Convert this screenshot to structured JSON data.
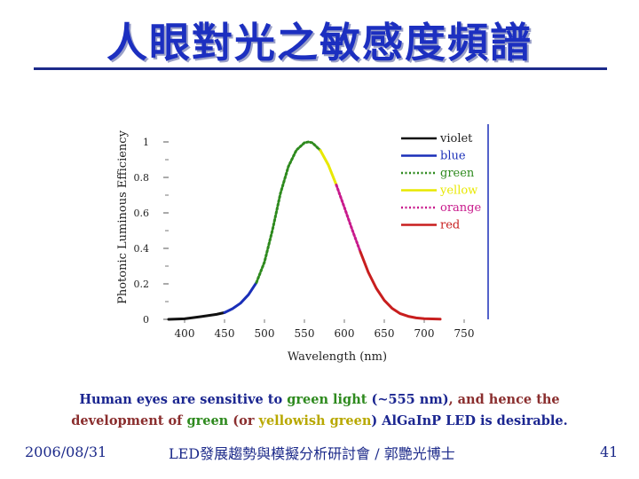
{
  "slide": {
    "title": "人眼對光之敏感度頻譜",
    "rule_color": "#1c2a8a"
  },
  "chart_data": {
    "type": "line",
    "title": "",
    "xlabel": "Wavelength (nm)",
    "ylabel": "Photonic Luminous Efficiency",
    "xlim": [
      380,
      780
    ],
    "ylim": [
      0,
      1.05
    ],
    "xticks": [
      "400",
      "450",
      "500",
      "550",
      "600",
      "650",
      "700",
      "750"
    ],
    "yticks": [
      "0",
      "0.2",
      "0.4",
      "0.6",
      "0.8",
      "1"
    ],
    "grid": false,
    "legend_position": "top-right",
    "series": [
      {
        "name": "violet",
        "color": "#111111",
        "dash": "solid",
        "x": [
          380,
          400,
          420,
          440,
          450
        ],
        "y": [
          0.0,
          0.003,
          0.015,
          0.028,
          0.038
        ]
      },
      {
        "name": "blue",
        "color": "#1a2fb8",
        "dash": "solid",
        "x": [
          450,
          460,
          470,
          480,
          490
        ],
        "y": [
          0.038,
          0.06,
          0.091,
          0.139,
          0.208
        ]
      },
      {
        "name": "green",
        "color": "#2e8a1e",
        "dash": "dotted",
        "x": [
          490,
          500,
          510,
          520,
          530,
          540,
          550,
          555,
          560,
          570
        ],
        "y": [
          0.208,
          0.323,
          0.503,
          0.71,
          0.862,
          0.954,
          0.995,
          1.0,
          0.995,
          0.952
        ]
      },
      {
        "name": "yellow",
        "color": "#e8e800",
        "dash": "solid",
        "x": [
          570,
          580,
          590
        ],
        "y": [
          0.952,
          0.87,
          0.757
        ]
      },
      {
        "name": "orange",
        "color": "#c81a8c",
        "dash": "dotted",
        "x": [
          590,
          600,
          610,
          620
        ],
        "y": [
          0.757,
          0.631,
          0.503,
          0.381
        ]
      },
      {
        "name": "red",
        "color": "#c81e1e",
        "dash": "solid",
        "x": [
          620,
          630,
          640,
          650,
          660,
          670,
          680,
          690,
          700,
          720
        ],
        "y": [
          0.381,
          0.265,
          0.175,
          0.107,
          0.061,
          0.032,
          0.017,
          0.008,
          0.004,
          0.001
        ]
      }
    ],
    "vertical_line": {
      "x": 780,
      "color": "#1a2fb8"
    }
  },
  "caption": {
    "line1": [
      {
        "text": "Human eyes are sensitive to ",
        "color": "#1a2590"
      },
      {
        "text": "green light",
        "color": "#2e8a1e"
      },
      {
        "text": " (~555 nm)",
        "color": "#1a2590"
      },
      {
        "text": ", and hence the",
        "color": "#8a2e2e"
      }
    ],
    "line2": [
      {
        "text": "development of ",
        "color": "#8a2e2e"
      },
      {
        "text": "green",
        "color": "#2e8a1e"
      },
      {
        "text": " (or ",
        "color": "#8a2e2e"
      },
      {
        "text": "yellowish green",
        "color": "#b8a800"
      },
      {
        "text": ") AlGaInP LED is desirable.",
        "color": "#1a2590"
      }
    ]
  },
  "footer": {
    "date": "2006/08/31",
    "center": "LED發展趨勢與模擬分析研討會 / 郭艷光博士",
    "page": "41"
  }
}
